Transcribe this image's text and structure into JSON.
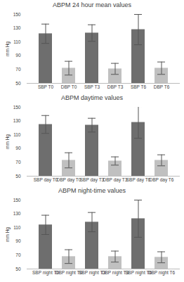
{
  "chart_data": [
    {
      "type": "bar",
      "title": "ABPM 24 hour mean values",
      "y_label": "mm Hg",
      "categories": [
        "SBP T0",
        "DBP T0",
        "SBP T3",
        "DBP T3",
        "SBP T6",
        "DBP T6"
      ],
      "values": [
        122,
        72,
        123,
        71,
        128,
        72
      ],
      "errors": [
        14,
        10,
        12,
        8,
        22,
        9
      ],
      "colors": [
        "#6e6e6e",
        "#c0c0c0",
        "#6e6e6e",
        "#c0c0c0",
        "#6e6e6e",
        "#c0c0c0"
      ],
      "ylim": [
        50,
        150
      ],
      "yticks": [
        50,
        70,
        90,
        110,
        130,
        150
      ],
      "grid": false
    },
    {
      "type": "bar",
      "title": "ABPM daytime values",
      "y_label": "mm Hg",
      "categories": [
        "SBP day T0",
        "DBP day T0",
        "SBP day T3",
        "DBP day T3",
        "SBP day T6",
        "DBP day T6"
      ],
      "values": [
        125,
        73,
        124,
        72,
        128,
        73
      ],
      "errors": [
        13,
        11,
        10,
        6,
        23,
        8
      ],
      "colors": [
        "#6e6e6e",
        "#c0c0c0",
        "#6e6e6e",
        "#c0c0c0",
        "#6e6e6e",
        "#c0c0c0"
      ],
      "ylim": [
        50,
        150
      ],
      "yticks": [
        50,
        70,
        90,
        110,
        130,
        150
      ],
      "grid": false
    },
    {
      "type": "bar",
      "title": "ABPM night-time values",
      "y_label": "mm Hg",
      "categories": [
        "SBP night T0",
        "DBP night T0",
        "SBP night T3",
        "DBP night T3",
        "SBP night T6",
        "DBP night T6"
      ],
      "values": [
        114,
        68,
        118,
        68,
        123,
        67
      ],
      "errors": [
        14,
        10,
        14,
        8,
        27,
        8
      ],
      "colors": [
        "#6e6e6e",
        "#c0c0c0",
        "#6e6e6e",
        "#c0c0c0",
        "#6e6e6e",
        "#c0c0c0"
      ],
      "ylim": [
        50,
        150
      ],
      "yticks": [
        50,
        70,
        90,
        110,
        130,
        150
      ],
      "grid": false
    }
  ]
}
